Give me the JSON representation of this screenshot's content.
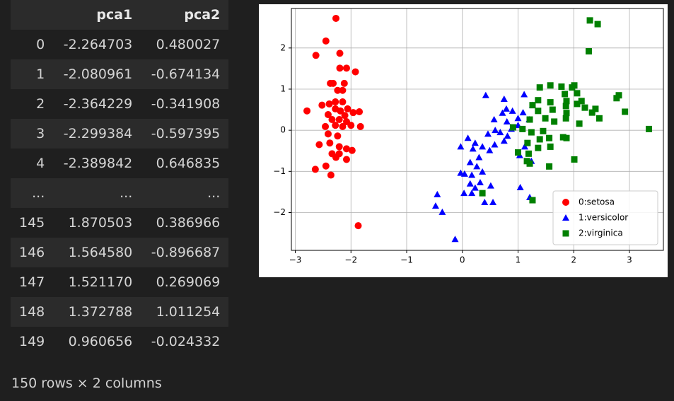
{
  "table": {
    "columns": [
      "pca1",
      "pca2"
    ],
    "rows": [
      [
        "0",
        "-2.264703",
        "0.480027"
      ],
      [
        "1",
        "-2.080961",
        "-0.674134"
      ],
      [
        "2",
        "-2.364229",
        "-0.341908"
      ],
      [
        "3",
        "-2.299384",
        "-0.597395"
      ],
      [
        "4",
        "-2.389842",
        "0.646835"
      ],
      [
        "...",
        "...",
        "..."
      ],
      [
        "145",
        "1.870503",
        "0.386966"
      ],
      [
        "146",
        "1.564580",
        "-0.896687"
      ],
      [
        "147",
        "1.521170",
        "0.269069"
      ],
      [
        "148",
        "1.372788",
        "1.011254"
      ],
      [
        "149",
        "0.960656",
        "-0.024332"
      ]
    ],
    "footer": "150 rows × 2 columns"
  },
  "chart_data": {
    "type": "scatter",
    "grid": true,
    "legend": "lower right",
    "xlim": [
      -3.07,
      3.61
    ],
    "ylim": [
      -2.92,
      2.96
    ],
    "xticks": [
      {
        "value": -3,
        "label": "−3"
      },
      {
        "value": -2,
        "label": "−2"
      },
      {
        "value": -1,
        "label": "−1"
      },
      0,
      1,
      2,
      3
    ],
    "yticks": [
      {
        "value": -2,
        "label": "−2"
      },
      {
        "value": -1,
        "label": "−1"
      },
      0,
      1,
      2
    ],
    "series": [
      {
        "name": "0:setosa",
        "color": "#ff0000",
        "marker": "circle",
        "x": [
          -2.27,
          -2.45,
          -2.63,
          -2.2,
          -2.2,
          -2.08,
          -1.92,
          -2.37,
          -2.32,
          -2.12,
          -2.24,
          -2.15,
          -2.52,
          -2.39,
          -2.28,
          -2.15,
          -2.79,
          -2.28,
          -2.19,
          -2.06,
          -1.96,
          -1.85,
          -2.41,
          -2.11,
          -2.34,
          -2.21,
          -2.08,
          -2.46,
          -2.28,
          -2.15,
          -2.0,
          -1.83,
          -2.41,
          -2.24,
          -2.57,
          -2.38,
          -2.21,
          -2.08,
          -1.98,
          -2.34,
          -2.21,
          -2.27,
          -2.08,
          -2.45,
          -2.64,
          -2.36,
          -1.87
        ],
        "y": [
          2.72,
          2.17,
          1.82,
          1.87,
          1.51,
          1.51,
          1.42,
          1.14,
          1.14,
          1.14,
          0.97,
          0.97,
          0.61,
          0.64,
          0.69,
          0.69,
          0.47,
          0.52,
          0.47,
          0.52,
          0.43,
          0.45,
          0.38,
          0.36,
          0.26,
          0.26,
          0.21,
          0.09,
          0.12,
          0.09,
          0.12,
          0.09,
          -0.09,
          -0.14,
          -0.35,
          -0.31,
          -0.4,
          -0.45,
          -0.49,
          -0.57,
          -0.57,
          -0.66,
          -0.71,
          -0.87,
          -0.95,
          -1.09,
          -2.32
        ]
      },
      {
        "name": "1:versicolor",
        "color": "#0000ff",
        "marker": "triangle",
        "x": [
          0.42,
          0.75,
          1.11,
          1.26,
          0.79,
          0.9,
          0.72,
          1.09,
          0.57,
          0.8,
          1.0,
          1.2,
          0.59,
          0.88,
          1.0,
          0.46,
          0.68,
          0.81,
          0.1,
          0.23,
          0.36,
          0.58,
          0.75,
          -0.03,
          0.19,
          0.49,
          0.3,
          0.14,
          0.26,
          0.36,
          0.17,
          -0.03,
          0.04,
          1.12,
          1.03,
          1.24,
          0.14,
          0.32,
          0.51,
          0.03,
          0.17,
          0.23,
          1.04,
          -0.45,
          0.4,
          0.55,
          1.21,
          -0.48,
          -0.36,
          -0.13
        ],
        "y": [
          0.85,
          0.76,
          0.87,
          0.61,
          0.52,
          0.47,
          0.42,
          0.43,
          0.26,
          0.21,
          0.29,
          0.26,
          0.0,
          0.03,
          0.12,
          -0.09,
          -0.05,
          -0.14,
          -0.19,
          -0.31,
          -0.4,
          -0.35,
          -0.26,
          -0.4,
          -0.45,
          -0.49,
          -0.66,
          -0.78,
          -0.88,
          -1.01,
          -1.09,
          -1.04,
          -1.06,
          -0.4,
          -0.61,
          -0.75,
          -1.3,
          -1.27,
          -1.35,
          -1.53,
          -1.53,
          -1.4,
          -1.39,
          -1.56,
          -1.75,
          -1.75,
          -1.63,
          -1.84,
          -1.99,
          -2.65
        ]
      },
      {
        "name": "2:virginica",
        "color": "#008000",
        "marker": "square",
        "x": [
          2.29,
          2.43,
          2.27,
          1.39,
          1.58,
          1.78,
          1.97,
          2.01,
          1.84,
          2.06,
          2.81,
          2.77,
          1.36,
          1.58,
          1.87,
          2.14,
          1.26,
          1.86,
          2.06,
          2.2,
          2.39,
          1.36,
          1.62,
          1.87,
          2.33,
          1.49,
          1.86,
          2.46,
          2.92,
          1.21,
          1.65,
          2.1,
          0.91,
          1.08,
          1.24,
          1.45,
          3.35,
          1.17,
          1.39,
          1.56,
          1.0,
          1.19,
          1.36,
          1.58,
          1.81,
          1.87,
          1.16,
          1.21,
          2.01,
          1.56,
          0.36,
          1.26
        ],
        "y": [
          2.67,
          2.58,
          1.92,
          1.04,
          1.09,
          1.06,
          1.04,
          1.09,
          0.88,
          0.9,
          0.85,
          0.78,
          0.73,
          0.68,
          0.71,
          0.71,
          0.61,
          0.59,
          0.64,
          0.55,
          0.52,
          0.47,
          0.5,
          0.42,
          0.43,
          0.29,
          0.29,
          0.29,
          0.45,
          0.26,
          0.21,
          0.16,
          0.07,
          0.03,
          -0.05,
          -0.02,
          0.03,
          -0.31,
          -0.22,
          -0.19,
          -0.54,
          -0.57,
          -0.43,
          -0.4,
          -0.17,
          -0.19,
          -0.75,
          -0.81,
          -0.71,
          -0.88,
          -1.53,
          -1.7
        ]
      }
    ]
  }
}
